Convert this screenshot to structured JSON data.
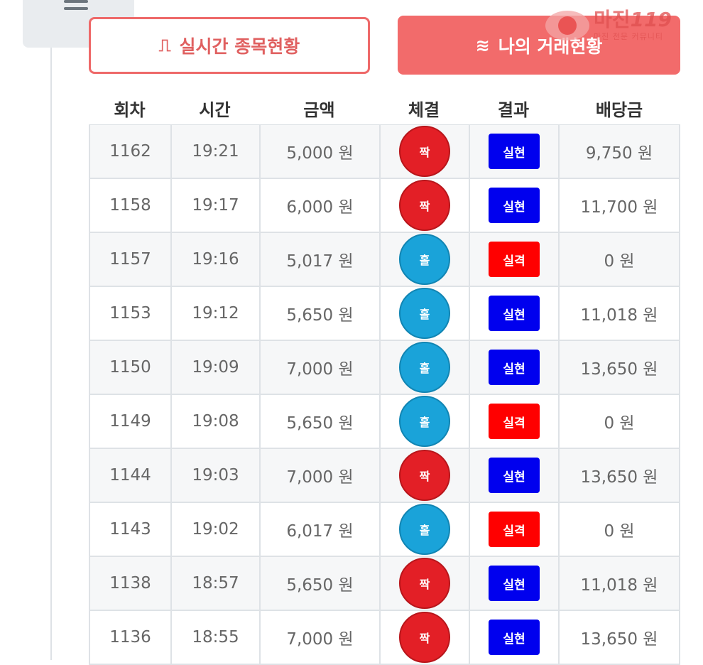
{
  "nav": {
    "menu_icon": "hamburger-menu-icon"
  },
  "buttons": {
    "live": {
      "icon": "pulse-icon",
      "label": "실시간 종목현황"
    },
    "mine": {
      "icon": "waves-icon",
      "label": "나의 거래현황"
    }
  },
  "logo": {
    "main": "마진",
    "accent": "119",
    "sub": "마진 전문 커뮤니티"
  },
  "table": {
    "headers": [
      "회차",
      "시간",
      "금액",
      "체결",
      "결과",
      "배당금"
    ],
    "rows": [
      {
        "round": "1162",
        "time": "19:21",
        "amount": "5,000 원",
        "fill": "짝",
        "result": "실현",
        "payout": "9,750 원"
      },
      {
        "round": "1158",
        "time": "19:17",
        "amount": "6,000 원",
        "fill": "짝",
        "result": "실현",
        "payout": "11,700 원"
      },
      {
        "round": "1157",
        "time": "19:16",
        "amount": "5,017 원",
        "fill": "홀",
        "result": "실격",
        "payout": "0 원"
      },
      {
        "round": "1153",
        "time": "19:12",
        "amount": "5,650 원",
        "fill": "홀",
        "result": "실현",
        "payout": "11,018 원"
      },
      {
        "round": "1150",
        "time": "19:09",
        "amount": "7,000 원",
        "fill": "홀",
        "result": "실현",
        "payout": "13,650 원"
      },
      {
        "round": "1149",
        "time": "19:08",
        "amount": "5,650 원",
        "fill": "홀",
        "result": "실격",
        "payout": "0 원"
      },
      {
        "round": "1144",
        "time": "19:03",
        "amount": "7,000 원",
        "fill": "짝",
        "result": "실현",
        "payout": "13,650 원"
      },
      {
        "round": "1143",
        "time": "19:02",
        "amount": "6,017 원",
        "fill": "홀",
        "result": "실격",
        "payout": "0 원"
      },
      {
        "round": "1138",
        "time": "18:57",
        "amount": "5,650 원",
        "fill": "짝",
        "result": "실현",
        "payout": "11,018 원"
      },
      {
        "round": "1136",
        "time": "18:55",
        "amount": "7,000 원",
        "fill": "짝",
        "result": "실현",
        "payout": "13,650 원"
      }
    ]
  },
  "colors": {
    "jjak": "#e31f26",
    "hol": "#1aa3d9",
    "win": "#0000ee",
    "lose": "#ff0000",
    "accent": "#f26b6b"
  }
}
